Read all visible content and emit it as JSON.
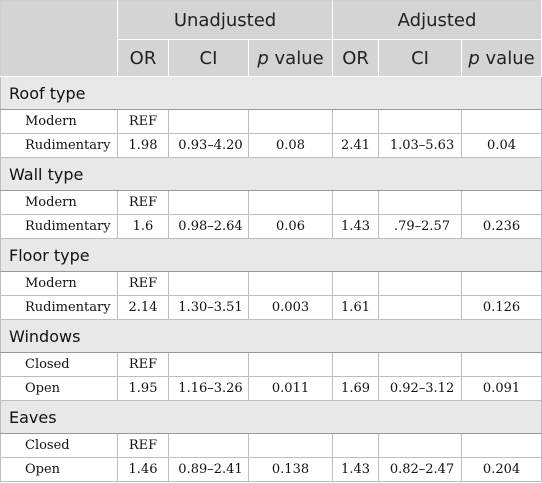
{
  "header": {
    "groups": [
      "Unadjusted",
      "Adjusted"
    ],
    "columns": [
      "OR",
      "CI",
      "p",
      "value",
      "OR",
      "CI",
      "p",
      "value"
    ]
  },
  "sections": [
    {
      "title": "Roof type",
      "rows": [
        {
          "label": "Modern",
          "u_or": "REF",
          "u_ci": "",
          "u_p": "",
          "a_or": "",
          "a_ci": "",
          "a_p": ""
        },
        {
          "label": "Rudimentary",
          "u_or": "1.98",
          "u_ci": "0.93–4.20",
          "u_p": "0.08",
          "a_or": "2.41",
          "a_ci": "1.03–5.63",
          "a_p": "0.04"
        }
      ]
    },
    {
      "title": "Wall type",
      "rows": [
        {
          "label": "Modern",
          "u_or": "REF",
          "u_ci": "",
          "u_p": "",
          "a_or": "",
          "a_ci": "",
          "a_p": ""
        },
        {
          "label": "Rudimentary",
          "u_or": "1.6",
          "u_ci": "0.98–2.64",
          "u_p": "0.06",
          "a_or": "1.43",
          "a_ci": ".79–2.57",
          "a_p": "0.236"
        }
      ]
    },
    {
      "title": "Floor type",
      "rows": [
        {
          "label": "Modern",
          "u_or": "REF",
          "u_ci": "",
          "u_p": "",
          "a_or": "",
          "a_ci": "",
          "a_p": ""
        },
        {
          "label": "Rudimentary",
          "u_or": "2.14",
          "u_ci": "1.30–3.51",
          "u_p": "0.003",
          "a_or": "1.61",
          "a_ci": "",
          "a_p": "0.126"
        }
      ]
    },
    {
      "title": "Windows",
      "rows": [
        {
          "label": "Closed",
          "u_or": "REF",
          "u_ci": "",
          "u_p": "",
          "a_or": "",
          "a_ci": "",
          "a_p": ""
        },
        {
          "label": "Open",
          "u_or": "1.95",
          "u_ci": "1.16–3.26",
          "u_p": "0.011",
          "a_or": "1.69",
          "a_ci": "0.92–3.12",
          "a_p": "0.091"
        }
      ]
    },
    {
      "title": "Eaves",
      "rows": [
        {
          "label": "Closed",
          "u_or": "REF",
          "u_ci": "",
          "u_p": "",
          "a_or": "",
          "a_ci": "",
          "a_p": ""
        },
        {
          "label": "Open",
          "u_or": "1.46",
          "u_ci": "0.89–2.41",
          "u_p": "0.138",
          "a_or": "1.43",
          "a_ci": "0.82–2.47",
          "a_p": "0.204"
        }
      ]
    }
  ]
}
